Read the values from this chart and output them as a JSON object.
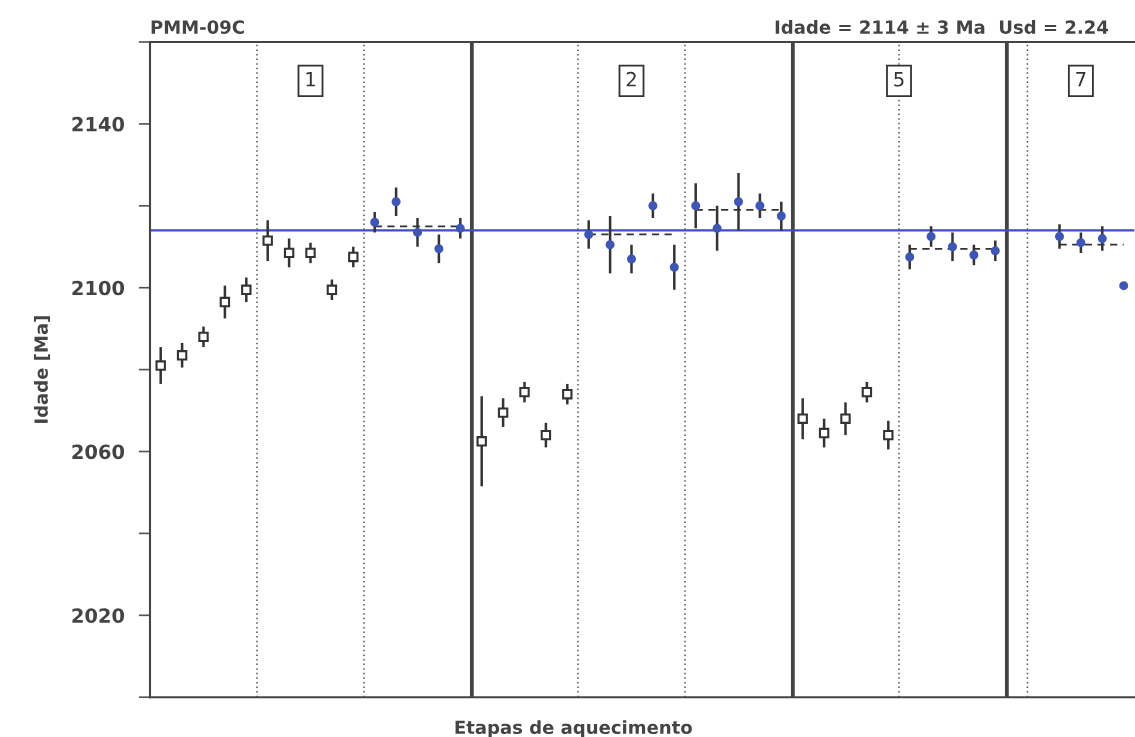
{
  "chart_data": {
    "type": "scatter",
    "title": "PMM-09C",
    "subtitle": "Idade = 2114 ± 3 Ma  Usd = 2.24",
    "xlabel": "Etapas de aquecimento",
    "ylabel": "Idade [Ma]",
    "annotations": [
      "1",
      "2",
      "5",
      "7"
    ],
    "categories": [
      null,
      null,
      null,
      null,
      null,
      null,
      null,
      null,
      null,
      null,
      null,
      null,
      null,
      null,
      null,
      null,
      null,
      null,
      null,
      null,
      null,
      null,
      null,
      null,
      null,
      null,
      null,
      null,
      null,
      null,
      null,
      null,
      null,
      null,
      null,
      null,
      null,
      null,
      null,
      null,
      null,
      null,
      null,
      null,
      null,
      null
    ],
    "ylim": [
      2000,
      2160
    ],
    "yticks": [
      {
        "value": 2000,
        "label": null
      },
      2020,
      {
        "value": 2040,
        "label": null
      },
      2060,
      {
        "value": 2080,
        "label": null
      },
      2100,
      {
        "value": 2120,
        "label": null
      },
      2140,
      {
        "value": 2160,
        "label": null
      }
    ],
    "tick_labels": "y",
    "grid": false,
    "legend": false,
    "ref_lines": [
      {
        "axis": "y",
        "value": 2114,
        "color": "#3b4fc0",
        "line_style": "solid"
      }
    ],
    "series": [
      {
        "color": "#333333",
        "marker": "square",
        "values": [
          2081,
          2083.5,
          2088,
          2096.5,
          2099.5,
          2111.5,
          2108.5,
          2108.5,
          2099.5,
          2107.5,
          null,
          null,
          null,
          null,
          null,
          2062.5,
          2069.5,
          2074.5,
          2064,
          2074,
          null,
          null,
          null,
          null,
          null,
          null,
          null,
          null,
          null,
          null,
          2068,
          2064.5,
          2068,
          2074.5,
          2064,
          null,
          null,
          null,
          null,
          null,
          null,
          null,
          null,
          null,
          null,
          null
        ],
        "errors": [
          4.5,
          3,
          2.5,
          4,
          3,
          5,
          3.5,
          2.5,
          2.5,
          2.5,
          null,
          null,
          null,
          null,
          null,
          11,
          3.5,
          2.5,
          3,
          2.5,
          null,
          null,
          null,
          null,
          null,
          null,
          null,
          null,
          null,
          null,
          5,
          3.5,
          4,
          2.5,
          3.5,
          null,
          null,
          null,
          null,
          null,
          null,
          null,
          null,
          null,
          null,
          null
        ]
      },
      {
        "color": "#3f56b5",
        "marker": "circle",
        "values": [
          null,
          null,
          null,
          null,
          null,
          null,
          null,
          null,
          null,
          null,
          2116,
          2121,
          2113.5,
          2109.5,
          2114.5,
          null,
          null,
          null,
          null,
          null,
          2113,
          2110.5,
          2107,
          2120,
          2105,
          2120,
          2114.5,
          2121,
          2120,
          2117.5,
          null,
          null,
          null,
          null,
          null,
          2107.5,
          2112.5,
          2110,
          2108,
          2109,
          null,
          null,
          2112.5,
          2111,
          2112,
          2100.5
        ],
        "errors": [
          null,
          null,
          null,
          null,
          null,
          null,
          null,
          null,
          null,
          null,
          2.5,
          3.5,
          3.5,
          3.5,
          2.5,
          null,
          null,
          null,
          null,
          null,
          3.5,
          7,
          3.5,
          3,
          5.5,
          5.5,
          5.5,
          7,
          3,
          3.5,
          null,
          null,
          null,
          null,
          null,
          3,
          2.5,
          3.5,
          2.5,
          2.5,
          null,
          null,
          3,
          2.5,
          3,
          null
        ]
      },
      {
        "type": "line",
        "color": "#333333",
        "line_style": "dashed",
        "marker": "none",
        "values": [
          null,
          null,
          null,
          null,
          null,
          null,
          null,
          null,
          null,
          null,
          2115,
          2115,
          2115,
          2115,
          2115,
          null,
          null,
          null,
          null,
          null,
          null,
          null,
          null,
          null,
          null,
          null,
          null,
          null,
          null,
          null,
          null,
          null,
          null,
          null,
          null,
          null,
          null,
          null,
          null,
          null,
          null,
          null,
          null,
          null,
          null,
          null
        ]
      },
      {
        "type": "line",
        "color": "#333333",
        "line_style": "dashed",
        "marker": "none",
        "values": [
          null,
          null,
          null,
          null,
          null,
          null,
          null,
          null,
          null,
          null,
          null,
          null,
          null,
          null,
          null,
          null,
          null,
          null,
          null,
          null,
          2113,
          2113,
          2113,
          2113,
          2113,
          null,
          null,
          null,
          null,
          null,
          null,
          null,
          null,
          null,
          null,
          null,
          null,
          null,
          null,
          null,
          null,
          null,
          null,
          null,
          null,
          null
        ]
      },
      {
        "type": "line",
        "color": "#333333",
        "line_style": "dashed",
        "marker": "none",
        "values": [
          null,
          null,
          null,
          null,
          null,
          null,
          null,
          null,
          null,
          null,
          null,
          null,
          null,
          null,
          null,
          null,
          null,
          null,
          null,
          null,
          null,
          null,
          null,
          null,
          null,
          2119,
          2119,
          2119,
          2119,
          2119,
          null,
          null,
          null,
          null,
          null,
          null,
          null,
          null,
          null,
          null,
          null,
          null,
          null,
          null,
          null,
          null
        ]
      },
      {
        "type": "line",
        "color": "#333333",
        "line_style": "dashed",
        "marker": "none",
        "values": [
          null,
          null,
          null,
          null,
          null,
          null,
          null,
          null,
          null,
          null,
          null,
          null,
          null,
          null,
          null,
          null,
          null,
          null,
          null,
          null,
          null,
          null,
          null,
          null,
          null,
          null,
          null,
          null,
          null,
          null,
          null,
          null,
          null,
          null,
          null,
          2109.5,
          2109.5,
          2109.5,
          2109.5,
          2109.5,
          null,
          null,
          null,
          null,
          null,
          null
        ]
      },
      {
        "type": "line",
        "color": "#333333",
        "line_style": "dashed",
        "marker": "none",
        "values": [
          null,
          null,
          null,
          null,
          null,
          null,
          null,
          null,
          null,
          null,
          null,
          null,
          null,
          null,
          null,
          null,
          null,
          null,
          null,
          null,
          null,
          null,
          null,
          null,
          null,
          null,
          null,
          null,
          null,
          null,
          null,
          null,
          null,
          null,
          null,
          null,
          null,
          null,
          null,
          null,
          null,
          null,
          2110.5,
          2110.5,
          2110.5,
          2110.5
        ]
      }
    ]
  }
}
